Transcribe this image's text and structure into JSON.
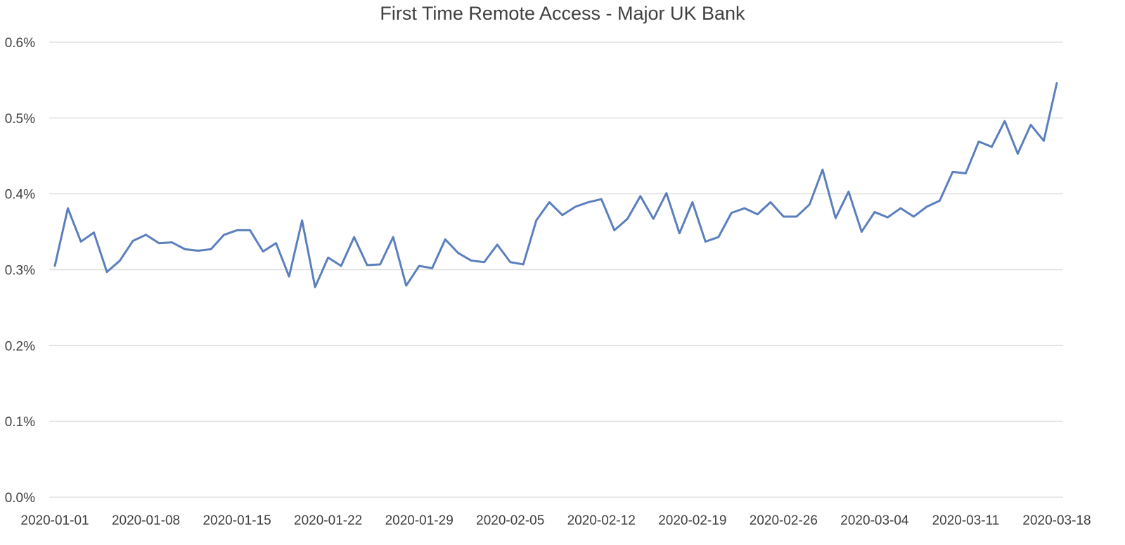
{
  "chart_data": {
    "type": "line",
    "title": "First Time Remote Access - Major UK Bank",
    "xlabel": "",
    "ylabel": "",
    "ylim": [
      0,
      0.6
    ],
    "y_ticks": [
      0.0,
      0.1,
      0.2,
      0.3,
      0.4,
      0.5,
      0.6
    ],
    "y_tick_labels": [
      "0.0%",
      "0.1%",
      "0.2%",
      "0.3%",
      "0.4%",
      "0.5%",
      "0.6%"
    ],
    "x_tick_labels": [
      "2020-01-01",
      "2020-01-08",
      "2020-01-15",
      "2020-01-22",
      "2020-01-29",
      "2020-02-05",
      "2020-02-12",
      "2020-02-19",
      "2020-02-26",
      "2020-03-04",
      "2020-03-11",
      "2020-03-18"
    ],
    "grid": true,
    "legend": "none",
    "colors": {
      "series": "#5b7fbd",
      "grid": "#d9d9d9",
      "text": "#404040"
    },
    "x_start": "2020-01-01",
    "x_end": "2020-03-18",
    "series": [
      {
        "name": "",
        "values": [
          0.305,
          0.381,
          0.337,
          0.349,
          0.297,
          0.312,
          0.338,
          0.346,
          0.335,
          0.336,
          0.327,
          0.325,
          0.327,
          0.346,
          0.352,
          0.352,
          0.324,
          0.335,
          0.291,
          0.365,
          0.277,
          0.316,
          0.305,
          0.343,
          0.306,
          0.307,
          0.343,
          0.279,
          0.305,
          0.302,
          0.34,
          0.322,
          0.312,
          0.31,
          0.333,
          0.31,
          0.307,
          0.365,
          0.389,
          0.372,
          0.383,
          0.389,
          0.393,
          0.352,
          0.367,
          0.397,
          0.367,
          0.401,
          0.348,
          0.389,
          0.337,
          0.343,
          0.375,
          0.381,
          0.373,
          0.389,
          0.37,
          0.37,
          0.386,
          0.432,
          0.368,
          0.403,
          0.35,
          0.376,
          0.369,
          0.381,
          0.37,
          0.383,
          0.391,
          0.429,
          0.427,
          0.469,
          0.462,
          0.496,
          0.453,
          0.491,
          0.47,
          0.546
        ]
      }
    ]
  }
}
